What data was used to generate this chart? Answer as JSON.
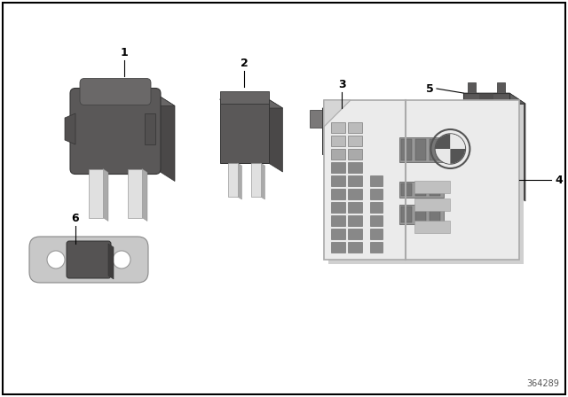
{
  "background_color": "#ffffff",
  "diagram_number": "364289",
  "dark_gray": "#5a5858",
  "medium_gray": "#7a7878",
  "light_gray": "#aaaaaa",
  "silver": "#c8c8c8",
  "silver_light": "#e0e0e0",
  "card_color": "#e8e8e8",
  "card_border": "#999999"
}
